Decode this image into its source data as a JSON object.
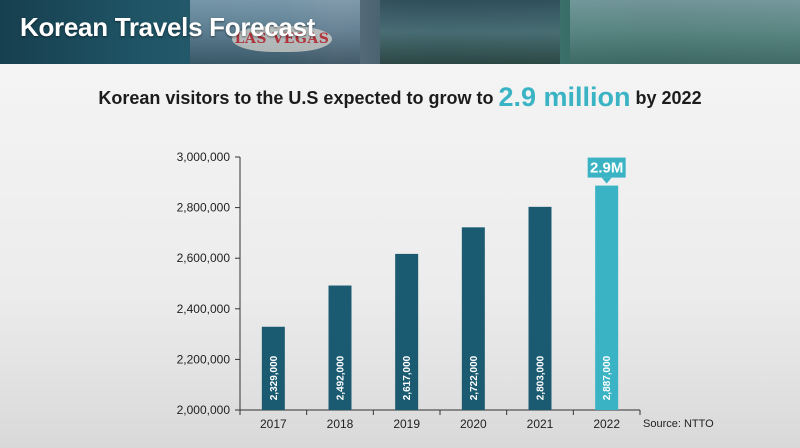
{
  "banner": {
    "title": "Korean Travels Forecast",
    "sign_text": "LAS VEGAS"
  },
  "headline": {
    "prefix": "Korean visitors to the U.S expected to grow to",
    "highlight": "2.9 million",
    "suffix": "by 2022"
  },
  "source": "Source: NTTO",
  "colors": {
    "bar": "#1b5b72",
    "highlight_bar": "#3ab4c4",
    "axis": "#333333"
  },
  "chart_data": {
    "type": "bar",
    "categories": [
      "2017",
      "2018",
      "2019",
      "2020",
      "2021",
      "2022"
    ],
    "values": [
      2329000,
      2492000,
      2617000,
      2722000,
      2803000,
      2887000
    ],
    "data_labels": [
      "2,329,000",
      "2,492,000",
      "2,617,000",
      "2,722,000",
      "2,803,000",
      "2,887,000"
    ],
    "y_ticks": [
      "2,000,000",
      "2,200,000",
      "2,400,000",
      "2,600,000",
      "2,800,000",
      "3,000,000"
    ],
    "y_tick_values": [
      2000000,
      2200000,
      2400000,
      2600000,
      2800000,
      3000000
    ],
    "ylim": [
      2000000,
      3000000
    ],
    "highlight_index": 5,
    "callout": "2.9M",
    "grid": false
  }
}
